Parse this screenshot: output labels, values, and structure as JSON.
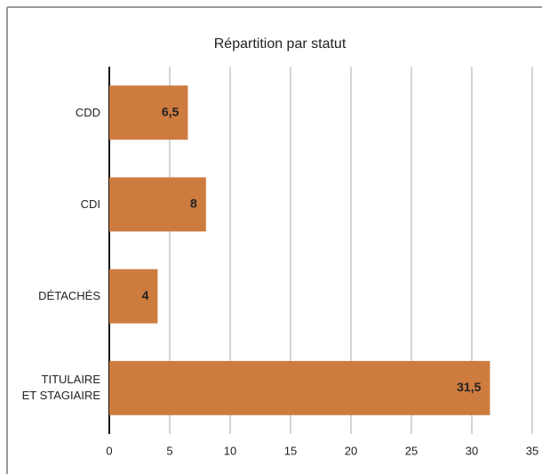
{
  "chart_data": {
    "type": "bar",
    "orientation": "horizontal",
    "title": "Répartition par statut",
    "categories": [
      "CDD",
      "CDI",
      "DÉTACHÉS",
      "TITULAIRE\nET STAGIAIRE"
    ],
    "values": [
      6.5,
      8,
      4,
      31.5
    ],
    "value_labels": [
      "6,5",
      "8",
      "4",
      "31,5"
    ],
    "color": "#cd7b3e",
    "xlim": [
      0,
      35
    ],
    "xticks": [
      0,
      5,
      10,
      15,
      20,
      25,
      30,
      35
    ],
    "grid": true
  }
}
